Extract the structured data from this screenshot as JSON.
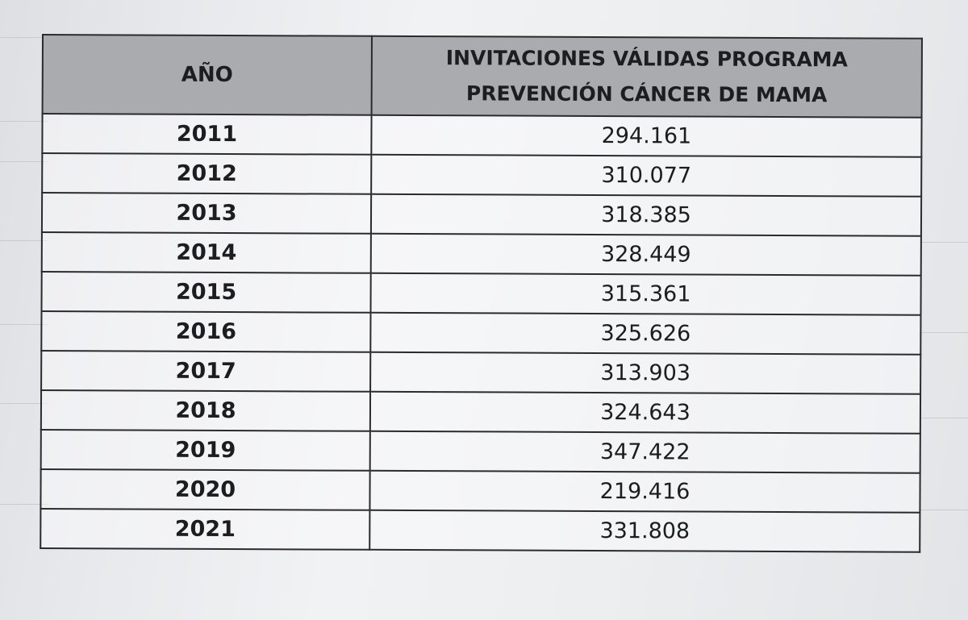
{
  "table": {
    "headers": {
      "year": "AÑO",
      "invitations_line1": "INVITACIONES VÁLIDAS PROGRAMA",
      "invitations_line2": "PREVENCIÓN CÁNCER DE MAMA"
    },
    "rows": [
      {
        "year": "2011",
        "invitations": "294.161"
      },
      {
        "year": "2012",
        "invitations": "310.077"
      },
      {
        "year": "2013",
        "invitations": "318.385"
      },
      {
        "year": "2014",
        "invitations": "328.449"
      },
      {
        "year": "2015",
        "invitations": "315.361"
      },
      {
        "year": "2016",
        "invitations": "325.626"
      },
      {
        "year": "2017",
        "invitations": "313.903"
      },
      {
        "year": "2018",
        "invitations": "324.643"
      },
      {
        "year": "2019",
        "invitations": "347.422"
      },
      {
        "year": "2020",
        "invitations": "219.416"
      },
      {
        "year": "2021",
        "invitations": "331.808"
      }
    ]
  }
}
